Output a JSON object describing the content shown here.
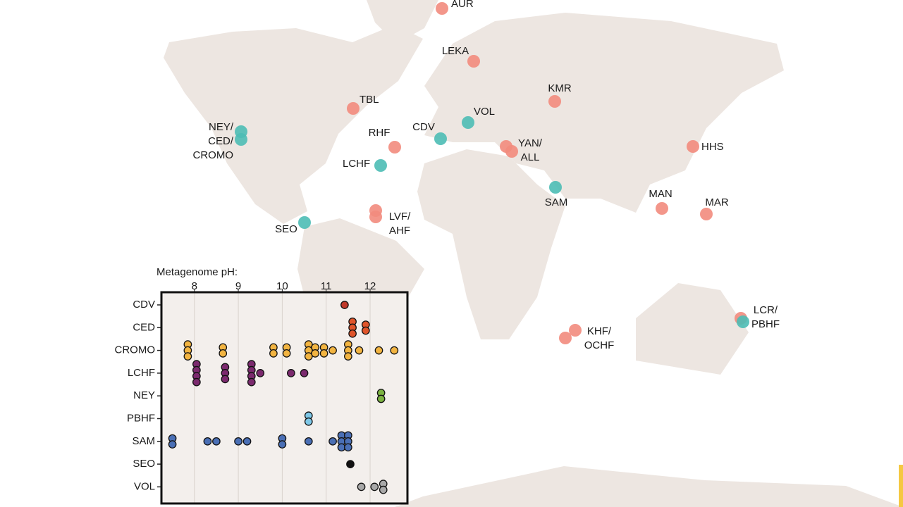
{
  "markers": [
    {
      "label_lines": [
        "AUR"
      ],
      "dot_colors": [
        "#f28b7d"
      ]
    },
    {
      "label_lines": [
        "LEKA"
      ],
      "dot_colors": [
        "#f28b7d"
      ]
    },
    {
      "label_lines": [
        "TBL"
      ],
      "dot_colors": [
        "#f28b7d"
      ]
    },
    {
      "label_lines": [
        "KMR"
      ],
      "dot_colors": [
        "#f28b7d"
      ]
    },
    {
      "label_lines": [
        "NEY/",
        "CED/",
        "CROMO"
      ],
      "dot_colors": [
        "#4dbcb5",
        "#4dbcb5"
      ]
    },
    {
      "label_lines": [
        "RHF"
      ],
      "dot_colors": [
        "#f28b7d"
      ]
    },
    {
      "label_lines": [
        "CDV"
      ],
      "dot_colors": [
        "#4dbcb5"
      ]
    },
    {
      "label_lines": [
        "VOL"
      ],
      "dot_colors": [
        "#4dbcb5"
      ]
    },
    {
      "label_lines": [
        "YAN/",
        "ALL"
      ],
      "dot_colors": [
        "#f28b7d",
        "#f28b7d"
      ]
    },
    {
      "label_lines": [
        "HHS"
      ],
      "dot_colors": [
        "#f28b7d"
      ]
    },
    {
      "label_lines": [
        "LCHF"
      ],
      "dot_colors": [
        "#4dbcb5"
      ]
    },
    {
      "label_lines": [
        "SAM"
      ],
      "dot_colors": [
        "#4dbcb5"
      ]
    },
    {
      "label_lines": [
        "MAN"
      ],
      "dot_colors": [
        "#f28b7d"
      ]
    },
    {
      "label_lines": [
        "MAR"
      ],
      "dot_colors": [
        "#f28b7d"
      ]
    },
    {
      "label_lines": [
        "LVF/",
        "AHF"
      ],
      "dot_colors": [
        "#f28b7d",
        "#f28b7d"
      ]
    },
    {
      "label_lines": [
        "SEO"
      ],
      "dot_colors": [
        "#4dbcb5"
      ]
    },
    {
      "label_lines": [
        "LCR/",
        "PBHF"
      ],
      "dot_colors": [
        "#f28b7d",
        "#4dbcb5"
      ]
    },
    {
      "label_lines": [
        "KHF/",
        "OCHF"
      ],
      "dot_colors": [
        "#f28b7d",
        "#f28b7d"
      ]
    }
  ],
  "chart_data": {
    "type": "dot",
    "x_label": "Metagenome pH:",
    "xlim": [
      7.25,
      12.85
    ],
    "xticks": [
      8,
      9,
      10,
      11,
      12
    ],
    "grid": true,
    "series": [
      {
        "name": "CDV",
        "color": "#c0392b",
        "values": [
          11.42
        ]
      },
      {
        "name": "CED",
        "color": "#e0552b",
        "values": [
          11.6,
          11.6,
          11.6,
          11.9,
          11.9
        ]
      },
      {
        "name": "CROMO",
        "color": "#f2b441",
        "values": [
          7.85,
          7.85,
          7.85,
          8.65,
          8.65,
          9.8,
          9.8,
          10.1,
          10.1,
          10.6,
          10.6,
          10.6,
          10.75,
          10.75,
          10.95,
          10.95,
          11.15,
          11.5,
          11.5,
          11.5,
          11.75,
          12.2,
          12.55
        ]
      },
      {
        "name": "LCHF",
        "color": "#7b2a6e",
        "values": [
          8.05,
          8.05,
          8.05,
          8.05,
          8.7,
          8.7,
          8.7,
          9.3,
          9.3,
          9.3,
          9.3,
          9.5,
          10.2,
          10.5
        ]
      },
      {
        "name": "NEY",
        "color": "#7cb342",
        "values": [
          12.25,
          12.25
        ]
      },
      {
        "name": "PBHF",
        "color": "#7ec8e8",
        "values": [
          10.6,
          10.6
        ]
      },
      {
        "name": "SAM",
        "color": "#4a6fb5",
        "values": [
          7.5,
          7.5,
          8.3,
          8.5,
          9.0,
          9.2,
          10.0,
          10.0,
          10.6,
          11.15,
          11.35,
          11.35,
          11.35,
          11.5,
          11.5,
          11.5
        ]
      },
      {
        "name": "SEO",
        "color": "#111111",
        "values": [
          11.55
        ]
      },
      {
        "name": "VOL",
        "color": "#a8a8a8",
        "values": [
          11.8,
          12.1,
          12.3,
          12.3
        ]
      }
    ]
  }
}
